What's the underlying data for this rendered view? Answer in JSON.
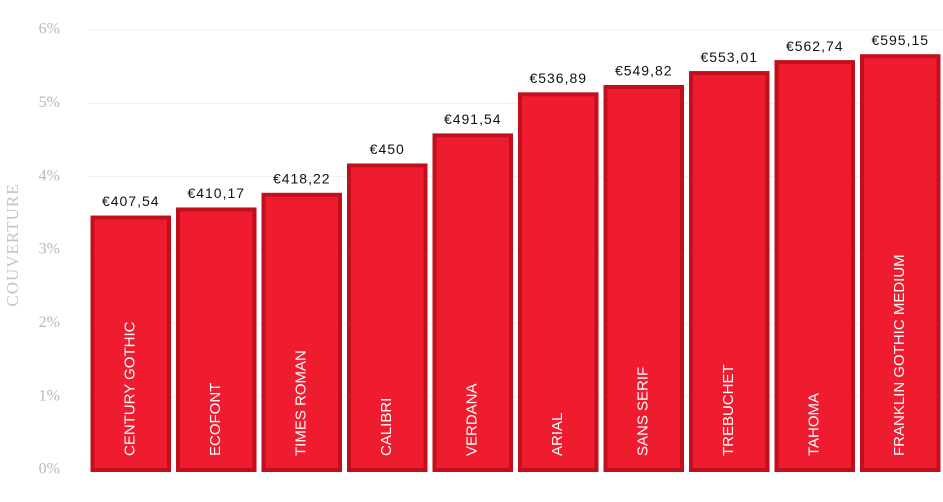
{
  "chart_data": {
    "type": "bar",
    "y_axis_label": "COUVERTURE",
    "categories": [
      "CENTURY GOTHIC",
      "ECOFONT",
      "TIMES ROMAN",
      "CALIBRI",
      "VERDANA",
      "ARIAL",
      "SANS SERIF",
      "TREBUCHET",
      "TAHOMA",
      "FRANKLIN GOTHIC MEDIUM"
    ],
    "values": [
      3.47,
      3.58,
      3.78,
      4.18,
      4.59,
      5.15,
      5.25,
      5.44,
      5.59,
      5.67
    ],
    "annotations": [
      "€407,54",
      "€410,17",
      "€418,22",
      "€450",
      "€491,54",
      "€536,89",
      "€549,82",
      "€553,01",
      "€562,74",
      "€595,15"
    ],
    "color": "#ee1c2e",
    "edge_color": "#c20f1d",
    "ylim": [
      0,
      6
    ],
    "yticks": [
      {
        "value": 0,
        "label": "0%"
      },
      {
        "value": 1,
        "label": "1%"
      },
      {
        "value": 2,
        "label": "2%"
      },
      {
        "value": 3,
        "label": "3%"
      },
      {
        "value": 4,
        "label": "4%"
      },
      {
        "value": 5,
        "label": "5%"
      },
      {
        "value": 6,
        "label": "6%"
      }
    ],
    "grid": true
  }
}
